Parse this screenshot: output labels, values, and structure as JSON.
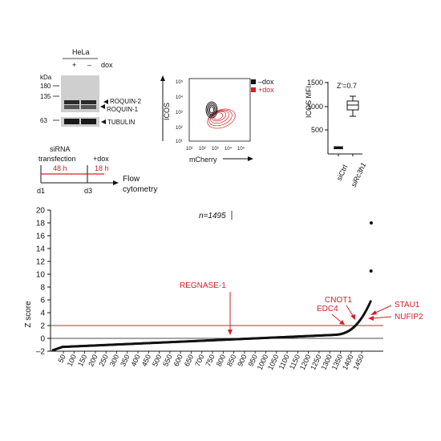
{
  "western": {
    "cell_line": "HeLa",
    "dox_label": "dox",
    "dox_plus": "+",
    "dox_minus": "–",
    "kda_label": "kDa",
    "markers": [
      "180",
      "135",
      "63"
    ],
    "bands": [
      "ROQUIN-2",
      "ROQUIN-1",
      "TUBULIN"
    ]
  },
  "timeline": {
    "sirna": "siRNA",
    "transfection": "transfection",
    "dox": "+dox",
    "interval1": "48 h",
    "interval2": "18 h",
    "flow": "Flow",
    "cytometry": "cytometry",
    "day1": "d1",
    "day3": "d3"
  },
  "flow_plot": {
    "ylabel": "ICOS",
    "xlabel": "mCherry",
    "y_ticks": [
      "10⁵",
      "10⁴",
      "10³",
      "10²",
      "10¹"
    ],
    "x_ticks": [
      "10¹",
      "10²",
      "10³",
      "10⁴",
      "10⁵"
    ],
    "legend": [
      {
        "label": "–dox",
        "color": "#111111"
      },
      {
        "label": "+dox",
        "color": "#d42027"
      }
    ]
  },
  "boxplot": {
    "ylabel": "ICOS MFI",
    "z_prime": "Z'=0.7",
    "y_ticks": [
      "1500",
      "1000",
      "500"
    ],
    "categories": [
      "siCtrl",
      "siRc3h1"
    ]
  },
  "chart_data": {
    "type": "scatter",
    "annotation_n": "n=1495",
    "ylabel": "Z score",
    "ylim": [
      -2,
      20
    ],
    "y_ticks": [
      "20",
      "18",
      "16",
      "14",
      "12",
      "10",
      "8",
      "6",
      "4",
      "2",
      "0",
      "–2"
    ],
    "x_ticks": [
      "50",
      "100",
      "150",
      "200",
      "250",
      "300",
      "350",
      "400",
      "450",
      "500",
      "550",
      "600",
      "650",
      "700",
      "750",
      "800",
      "850",
      "900",
      "950",
      "1000",
      "1050",
      "1100",
      "1150",
      "1200",
      "1250",
      "1300",
      "1350",
      "1400",
      "1450"
    ],
    "threshold": 2,
    "highlighted": [
      {
        "label": "REGNASE-1",
        "rank": 765,
        "z": 0.3
      },
      {
        "label": "EDC4",
        "rank": 1395,
        "z": 1.9
      },
      {
        "label": "CNOT1",
        "rank": 1440,
        "z": 2.2
      },
      {
        "label": "STAU1",
        "rank": 1480,
        "z": 2.5
      },
      {
        "label": "NUFIP2",
        "rank": 1470,
        "z": 2.4
      }
    ],
    "outliers": [
      {
        "rank": 1494,
        "z": 10.5
      },
      {
        "rank": 1495,
        "z": 18.0
      }
    ],
    "total": 1495
  },
  "colors": {
    "accent": "#d42027",
    "ink": "#111111"
  }
}
